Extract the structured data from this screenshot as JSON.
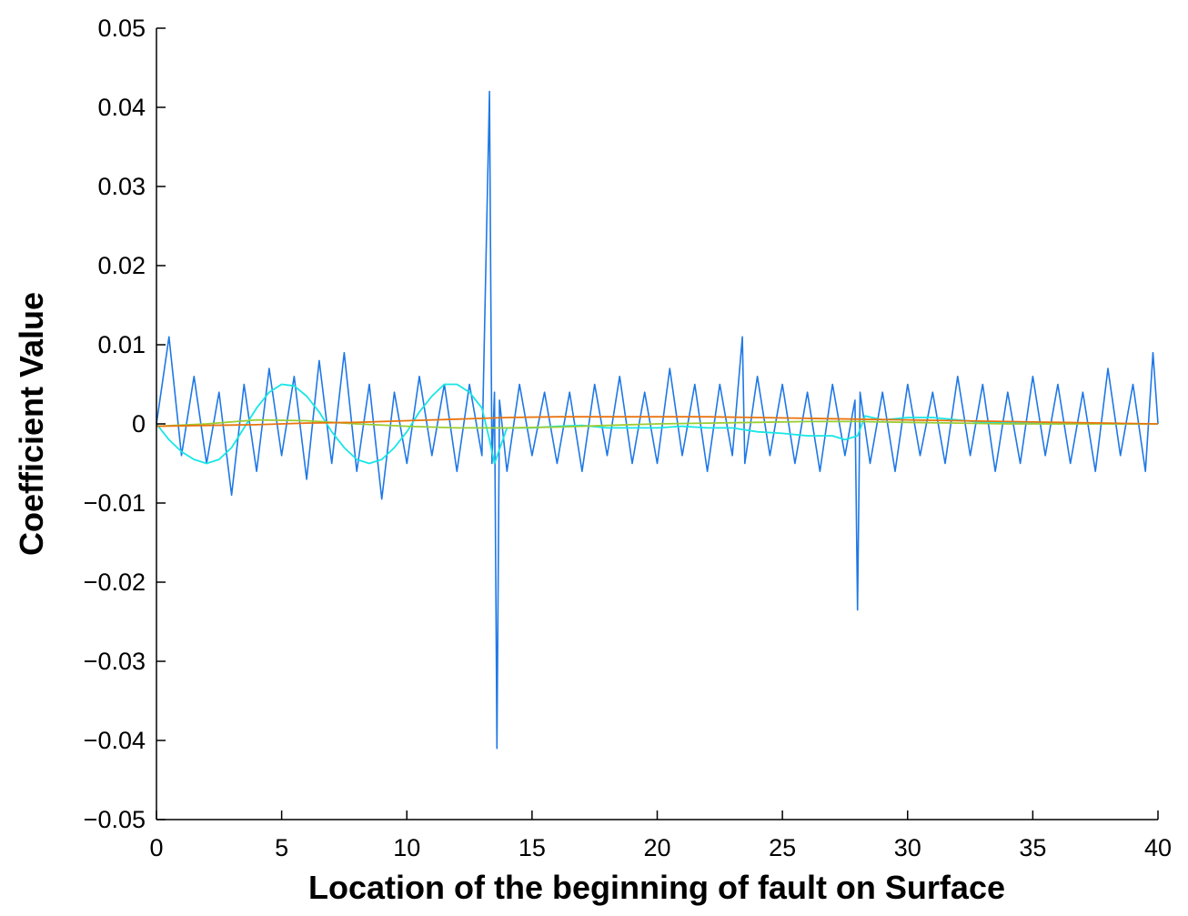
{
  "chart_data": {
    "type": "line",
    "title": "",
    "xlabel": "Location of the beginning of fault on Surface",
    "ylabel": "Coefficient Value",
    "xlim": [
      0,
      40
    ],
    "ylim": [
      -0.05,
      0.05
    ],
    "x_ticks": [
      0,
      5,
      10,
      15,
      20,
      25,
      30,
      35,
      40
    ],
    "y_ticks": [
      -0.05,
      -0.04,
      -0.03,
      -0.02,
      -0.01,
      0,
      0.01,
      0.02,
      0.03,
      0.04,
      0.05
    ],
    "x_tick_labels": [
      "0",
      "5",
      "10",
      "15",
      "20",
      "25",
      "30",
      "35",
      "40"
    ],
    "y_tick_labels": [
      "−0.05",
      "−0.04",
      "−0.03",
      "−0.02",
      "−0.01",
      "0",
      "0.01",
      "0.02",
      "0.03",
      "0.04",
      "0.05"
    ],
    "grid": false,
    "legend": "none",
    "series": [
      {
        "color": "#1f78e6",
        "x": [
          0,
          0.5,
          1,
          1.5,
          2,
          2.5,
          3,
          3.5,
          4,
          4.5,
          5,
          5.5,
          6,
          6.5,
          7,
          7.5,
          8,
          8.5,
          9,
          9.5,
          10,
          10.5,
          11,
          11.5,
          12,
          12.5,
          13,
          13.3,
          13.4,
          13.5,
          13.6,
          13.7,
          14,
          14.5,
          15,
          15.5,
          16,
          16.5,
          17,
          17.5,
          18,
          18.5,
          19,
          19.5,
          20,
          20.5,
          21,
          21.5,
          22,
          22.5,
          23,
          23.4,
          23.5,
          24,
          24.5,
          25,
          25.5,
          26,
          26.5,
          27,
          27.5,
          27.9,
          28.0,
          28.1,
          28.5,
          29,
          29.5,
          30,
          30.5,
          31,
          31.5,
          32,
          32.5,
          33,
          33.5,
          34,
          34.5,
          35,
          35.5,
          36,
          36.5,
          37,
          37.5,
          38,
          38.5,
          39,
          39.5,
          39.8,
          40
        ],
        "y": [
          0.0,
          0.011,
          -0.004,
          0.006,
          -0.005,
          0.004,
          -0.009,
          0.005,
          -0.006,
          0.007,
          -0.004,
          0.006,
          -0.007,
          0.008,
          -0.005,
          0.009,
          -0.006,
          0.005,
          -0.0095,
          0.004,
          -0.005,
          0.006,
          -0.004,
          0.005,
          -0.006,
          0.005,
          -0.004,
          0.042,
          -0.005,
          0.004,
          -0.041,
          0.003,
          -0.006,
          0.005,
          -0.004,
          0.004,
          -0.005,
          0.004,
          -0.006,
          0.005,
          -0.004,
          0.006,
          -0.005,
          0.004,
          -0.005,
          0.007,
          -0.004,
          0.005,
          -0.006,
          0.005,
          -0.004,
          0.011,
          -0.005,
          0.006,
          -0.004,
          0.005,
          -0.005,
          0.004,
          -0.006,
          0.005,
          -0.004,
          0.003,
          -0.0235,
          0.004,
          -0.005,
          0.004,
          -0.006,
          0.005,
          -0.004,
          0.004,
          -0.005,
          0.006,
          -0.004,
          0.005,
          -0.006,
          0.004,
          -0.005,
          0.006,
          -0.004,
          0.005,
          -0.005,
          0.004,
          -0.006,
          0.007,
          -0.004,
          0.005,
          -0.006,
          0.009,
          0.0
        ]
      },
      {
        "color": "#17e6e6",
        "x": [
          0,
          0.5,
          1,
          1.5,
          2,
          2.5,
          3,
          3.5,
          4,
          4.5,
          5,
          5.5,
          6,
          6.5,
          7,
          7.5,
          8,
          8.5,
          9,
          9.5,
          10,
          10.5,
          11,
          11.5,
          12,
          12.5,
          13,
          13.3,
          13.5,
          14,
          15,
          16,
          17,
          18,
          19,
          20,
          21,
          22,
          23,
          24,
          25,
          26,
          27,
          27.5,
          28,
          28.3,
          29,
          30,
          31,
          32,
          33,
          34,
          35,
          36,
          37,
          38,
          39,
          40
        ],
        "y": [
          0,
          -0.002,
          -0.0035,
          -0.0045,
          -0.005,
          -0.0045,
          -0.003,
          -0.0005,
          0.002,
          0.004,
          0.005,
          0.0048,
          0.0035,
          0.0015,
          -0.001,
          -0.003,
          -0.0045,
          -0.005,
          -0.0045,
          -0.003,
          -0.001,
          0.0015,
          0.0035,
          0.005,
          0.005,
          0.004,
          0.002,
          -0.002,
          -0.005,
          -0.0005,
          -0.0005,
          -0.0003,
          -0.0002,
          -0.0005,
          -0.0005,
          -0.0005,
          -0.0003,
          -0.0005,
          -0.0005,
          -0.001,
          -0.0012,
          -0.0015,
          -0.0015,
          -0.002,
          -0.0015,
          0.001,
          0.0005,
          0.0008,
          0.0008,
          0.0005,
          0.0002,
          0.0002,
          0.0001,
          0,
          0.0001,
          0,
          0,
          0
        ]
      },
      {
        "color": "#9acd32",
        "x": [
          0,
          2,
          4,
          6,
          8,
          10,
          12,
          14,
          16,
          18,
          20,
          22,
          24,
          26,
          28,
          30,
          32,
          34,
          36,
          38,
          40
        ],
        "y": [
          -0.0003,
          0,
          0.0005,
          0.0004,
          0,
          -0.0003,
          -0.0005,
          -0.0005,
          -0.0004,
          -0.0002,
          0,
          0.0001,
          0.0002,
          0.0003,
          0.0003,
          0.0002,
          0.0001,
          0,
          0,
          0,
          0
        ]
      },
      {
        "color": "#e87510",
        "x": [
          0,
          2,
          4,
          6,
          8,
          10,
          12,
          14,
          16,
          18,
          20,
          22,
          24,
          26,
          28,
          30,
          32,
          34,
          36,
          38,
          40
        ],
        "y": [
          -0.0003,
          -0.0002,
          -0.0001,
          0.0001,
          0.0002,
          0.0004,
          0.0006,
          0.0008,
          0.0009,
          0.0009,
          0.0009,
          0.0009,
          0.0008,
          0.0007,
          0.0006,
          0.0005,
          0.0004,
          0.0003,
          0.0002,
          0.0001,
          0
        ]
      }
    ]
  }
}
